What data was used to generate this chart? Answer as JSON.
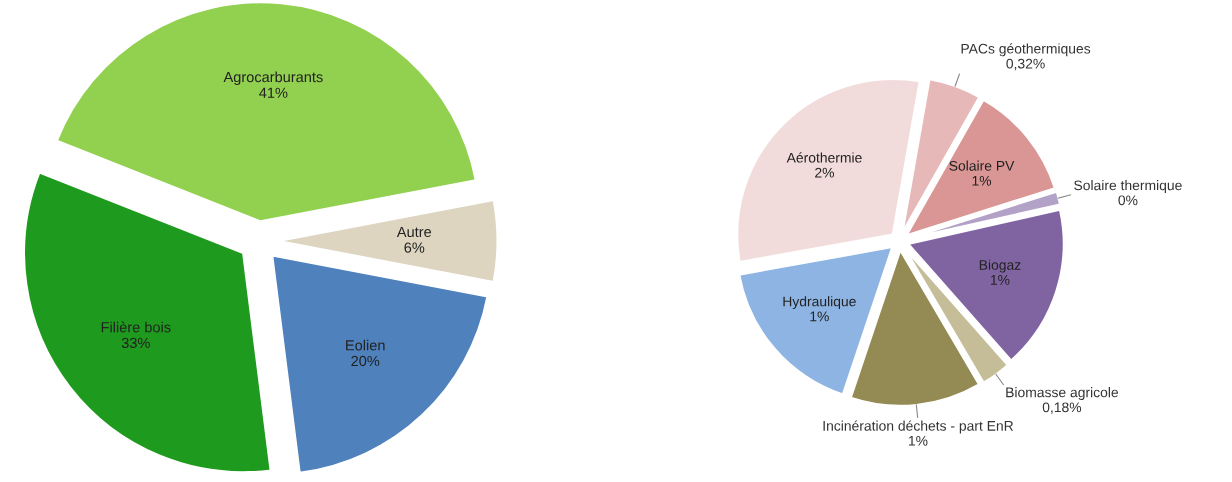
{
  "chart_data": [
    {
      "type": "pie",
      "categories": [
        "Autre",
        "Agrocarburants",
        "Filière bois",
        "Eolien"
      ],
      "values": [
        6,
        41,
        33,
        20
      ],
      "colors": [
        "#ddd5c0",
        "#92d050",
        "#1e9a1e",
        "#4f81bd"
      ],
      "value_labels": [
        "6%",
        "41%",
        "33%",
        "20%"
      ]
    },
    {
      "type": "pie",
      "categories": [
        "PACs géothermiques",
        "Solaire PV",
        "Solaire thermique",
        "Biogaz",
        "Biomasse agricole",
        "Incinération déchets - part EnR",
        "Hydraulique",
        "Aérothermie"
      ],
      "values": [
        0.32,
        0.7,
        0.08,
        1.0,
        0.18,
        0.8,
        1.0,
        1.8
      ],
      "colors": [
        "#e6b9b8",
        "#d99694",
        "#b3a2c7",
        "#8064a2",
        "#c4bd97",
        "#948a54",
        "#8eb4e3",
        "#f2dcdb"
      ],
      "value_labels": [
        "0,32%",
        "1%",
        "0%",
        "1%",
        "0,18%",
        "1%",
        "1%",
        "2%"
      ]
    }
  ]
}
